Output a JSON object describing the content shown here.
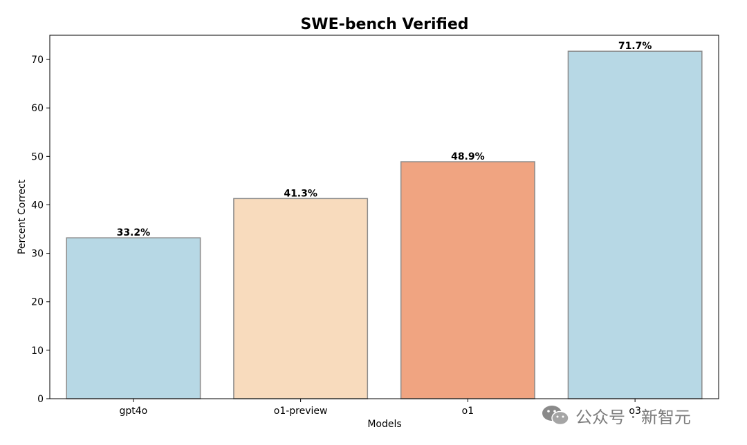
{
  "chart_data": {
    "type": "bar",
    "title": "SWE-bench Verified",
    "xlabel": "Models",
    "ylabel": "Percent Correct",
    "categories": [
      "gpt4o",
      "o1-preview",
      "o1",
      "o3"
    ],
    "values": [
      33.2,
      41.3,
      48.9,
      71.7
    ],
    "data_labels": [
      "33.2%",
      "41.3%",
      "48.9%",
      "71.7%"
    ],
    "bar_colors": [
      "#b7d8e5",
      "#f8dbbd",
      "#f0a481",
      "#b7d8e5"
    ],
    "bar_edge_color": "#8a8a8a",
    "ylim": [
      0,
      75
    ],
    "yticks": [
      0,
      10,
      20,
      30,
      40,
      50,
      60,
      70
    ],
    "grid": false,
    "legend": "none"
  },
  "watermark": {
    "icon": "wechat-icon",
    "text": "公众号 · 新智元"
  }
}
